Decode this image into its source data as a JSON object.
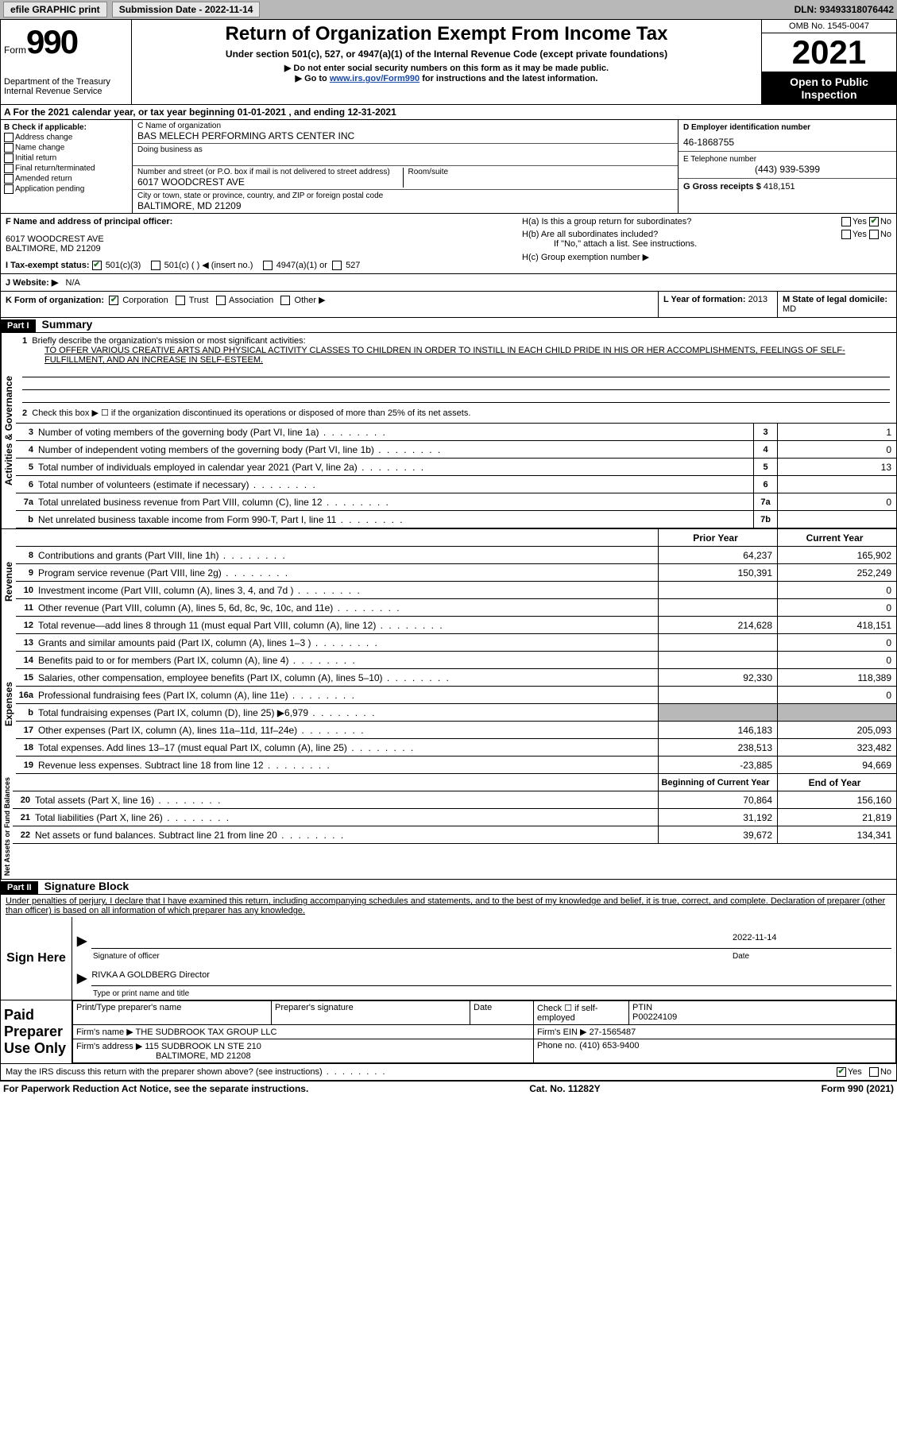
{
  "topbar": {
    "efile": "efile GRAPHIC print",
    "sub_label": "Submission Date - 2022-11-14",
    "dln": "DLN: 93493318076442"
  },
  "header": {
    "form_word": "Form",
    "form_num": "990",
    "dept": "Department of the Treasury Internal Revenue Service",
    "title": "Return of Organization Exempt From Income Tax",
    "sub1": "Under section 501(c), 527, or 4947(a)(1) of the Internal Revenue Code (except private foundations)",
    "sub2": "▶ Do not enter social security numbers on this form as it may be made public.",
    "sub3_a": "▶ Go to ",
    "sub3_link": "www.irs.gov/Form990",
    "sub3_b": " for instructions and the latest information.",
    "omb": "OMB No. 1545-0047",
    "year": "2021",
    "open": "Open to Public Inspection"
  },
  "rowA": "A For the 2021 calendar year, or tax year beginning 01-01-2021    , and ending 12-31-2021",
  "b": {
    "label": "B Check if applicable:",
    "opts": [
      "Address change",
      "Name change",
      "Initial return",
      "Final return/terminated",
      "Amended return",
      "Application pending"
    ]
  },
  "c": {
    "name_label": "C Name of organization",
    "name": "BAS MELECH PERFORMING ARTS CENTER INC",
    "dba_label": "Doing business as",
    "street_label": "Number and street (or P.O. box if mail is not delivered to street address)",
    "room_label": "Room/suite",
    "street": "6017 WOODCREST AVE",
    "city_label": "City or town, state or province, country, and ZIP or foreign postal code",
    "city": "BALTIMORE, MD  21209"
  },
  "d": {
    "label": "D Employer identification number",
    "val": "46-1868755"
  },
  "e": {
    "label": "E Telephone number",
    "val": "(443) 939-5399"
  },
  "g": {
    "label": "G Gross receipts $",
    "val": "418,151"
  },
  "f": {
    "label": "F Name and address of principal officer:",
    "addr1": "6017 WOODCREST AVE",
    "addr2": "BALTIMORE, MD  21209"
  },
  "h": {
    "a": "H(a)  Is this a group return for subordinates?",
    "b": "H(b)  Are all subordinates included?",
    "note": "If \"No,\" attach a list. See instructions.",
    "c": "H(c)  Group exemption number ▶",
    "yes": "Yes",
    "no": "No"
  },
  "i": {
    "label": "I   Tax-exempt status:",
    "o1": "501(c)(3)",
    "o2": "501(c) (  ) ◀ (insert no.)",
    "o3": "4947(a)(1) or",
    "o4": "527"
  },
  "j": {
    "label": "J   Website: ▶",
    "val": "N/A"
  },
  "k": {
    "label": "K Form of organization:",
    "o1": "Corporation",
    "o2": "Trust",
    "o3": "Association",
    "o4": "Other ▶"
  },
  "l": {
    "label": "L Year of formation:",
    "val": "2013"
  },
  "m": {
    "label": "M State of legal domicile:",
    "val": "MD"
  },
  "part1": {
    "tag": "Part I",
    "title": "Summary"
  },
  "mission": {
    "label": "Briefly describe the organization's mission or most significant activities:",
    "text": "TO OFFER VARIOUS CREATIVE ARTS AND PHYSICAL ACTIVITY CLASSES TO CHILDREN IN ORDER TO INSTILL IN EACH CHILD PRIDE IN HIS OR HER ACCOMPLISHMENTS, FEELINGS OF SELF-FULFILLMENT, AND AN INCREASE IN SELF-ESTEEM."
  },
  "line2": "Check this box ▶ ☐  if the organization discontinued its operations or disposed of more than 25% of its net assets.",
  "lines_ag": [
    {
      "n": "3",
      "d": "Number of voting members of the governing body (Part VI, line 1a)",
      "box": "3",
      "v": "1"
    },
    {
      "n": "4",
      "d": "Number of independent voting members of the governing body (Part VI, line 1b)",
      "box": "4",
      "v": "0"
    },
    {
      "n": "5",
      "d": "Total number of individuals employed in calendar year 2021 (Part V, line 2a)",
      "box": "5",
      "v": "13"
    },
    {
      "n": "6",
      "d": "Total number of volunteers (estimate if necessary)",
      "box": "6",
      "v": ""
    },
    {
      "n": "7a",
      "d": "Total unrelated business revenue from Part VIII, column (C), line 12",
      "box": "7a",
      "v": "0"
    },
    {
      "n": "b",
      "d": "Net unrelated business taxable income from Form 990-T, Part I, line 11",
      "box": "7b",
      "v": ""
    }
  ],
  "hdr_py": "Prior Year",
  "hdr_cy": "Current Year",
  "lines_rev": [
    {
      "n": "8",
      "d": "Contributions and grants (Part VIII, line 1h)",
      "py": "64,237",
      "cy": "165,902"
    },
    {
      "n": "9",
      "d": "Program service revenue (Part VIII, line 2g)",
      "py": "150,391",
      "cy": "252,249"
    },
    {
      "n": "10",
      "d": "Investment income (Part VIII, column (A), lines 3, 4, and 7d )",
      "py": "",
      "cy": "0"
    },
    {
      "n": "11",
      "d": "Other revenue (Part VIII, column (A), lines 5, 6d, 8c, 9c, 10c, and 11e)",
      "py": "",
      "cy": "0"
    },
    {
      "n": "12",
      "d": "Total revenue—add lines 8 through 11 (must equal Part VIII, column (A), line 12)",
      "py": "214,628",
      "cy": "418,151"
    }
  ],
  "lines_exp": [
    {
      "n": "13",
      "d": "Grants and similar amounts paid (Part IX, column (A), lines 1–3 )",
      "py": "",
      "cy": "0"
    },
    {
      "n": "14",
      "d": "Benefits paid to or for members (Part IX, column (A), line 4)",
      "py": "",
      "cy": "0"
    },
    {
      "n": "15",
      "d": "Salaries, other compensation, employee benefits (Part IX, column (A), lines 5–10)",
      "py": "92,330",
      "cy": "118,389"
    },
    {
      "n": "16a",
      "d": "Professional fundraising fees (Part IX, column (A), line 11e)",
      "py": "",
      "cy": "0"
    },
    {
      "n": "b",
      "d": "Total fundraising expenses (Part IX, column (D), line 25) ▶6,979",
      "py": "grey",
      "cy": "grey"
    },
    {
      "n": "17",
      "d": "Other expenses (Part IX, column (A), lines 11a–11d, 11f–24e)",
      "py": "146,183",
      "cy": "205,093"
    },
    {
      "n": "18",
      "d": "Total expenses. Add lines 13–17 (must equal Part IX, column (A), line 25)",
      "py": "238,513",
      "cy": "323,482"
    },
    {
      "n": "19",
      "d": "Revenue less expenses. Subtract line 18 from line 12",
      "py": "-23,885",
      "cy": "94,669"
    }
  ],
  "hdr_boy": "Beginning of Current Year",
  "hdr_eoy": "End of Year",
  "lines_na": [
    {
      "n": "20",
      "d": "Total assets (Part X, line 16)",
      "py": "70,864",
      "cy": "156,160"
    },
    {
      "n": "21",
      "d": "Total liabilities (Part X, line 26)",
      "py": "31,192",
      "cy": "21,819"
    },
    {
      "n": "22",
      "d": "Net assets or fund balances. Subtract line 21 from line 20",
      "py": "39,672",
      "cy": "134,341"
    }
  ],
  "vlabels": {
    "ag": "Activities & Governance",
    "rev": "Revenue",
    "exp": "Expenses",
    "na": "Net Assets or Fund Balances"
  },
  "part2": {
    "tag": "Part II",
    "title": "Signature Block"
  },
  "perjury": "Under penalties of perjury, I declare that I have examined this return, including accompanying schedules and statements, and to the best of my knowledge and belief, it is true, correct, and complete. Declaration of preparer (other than officer) is based on all information of which preparer has any knowledge.",
  "sign": {
    "side": "Sign Here",
    "date": "2022-11-14",
    "sig_label": "Signature of officer",
    "date_label": "Date",
    "name": "RIVKA A GOLDBERG  Director",
    "name_label": "Type or print name and title"
  },
  "paid": {
    "side": "Paid Preparer Use Only",
    "h1": "Print/Type preparer's name",
    "h2": "Preparer's signature",
    "h3": "Date",
    "h4": "Check ☐ if self-employed",
    "h5l": "PTIN",
    "h5v": "P00224109",
    "firm_l": "Firm's name    ▶",
    "firm_v": "THE SUDBROOK TAX GROUP LLC",
    "ein_l": "Firm's EIN ▶",
    "ein_v": "27-1565487",
    "addr_l": "Firm's address ▶",
    "addr_v1": "115 SUDBROOK LN STE 210",
    "addr_v2": "BALTIMORE, MD  21208",
    "phone_l": "Phone no.",
    "phone_v": "(410) 653-9400"
  },
  "discuss": "May the IRS discuss this return with the preparer shown above? (see instructions)",
  "footer": {
    "l": "For Paperwork Reduction Act Notice, see the separate instructions.",
    "m": "Cat. No. 11282Y",
    "r": "Form 990 (2021)"
  }
}
